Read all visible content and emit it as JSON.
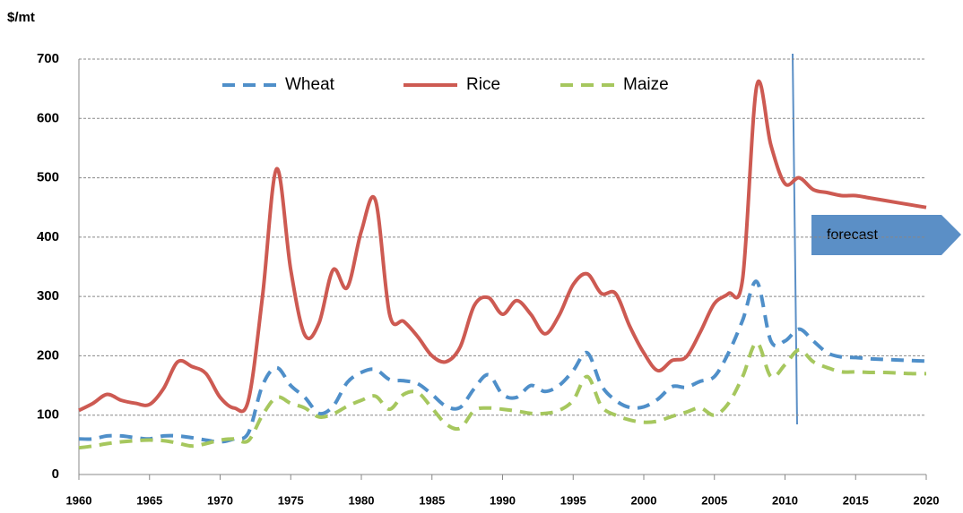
{
  "chart_data": {
    "type": "line",
    "y_label": "$/mt",
    "annotation": "forecast",
    "x": [
      1960,
      1961,
      1962,
      1963,
      1964,
      1965,
      1966,
      1967,
      1968,
      1969,
      1970,
      1971,
      1972,
      1973,
      1974,
      1975,
      1976,
      1977,
      1978,
      1979,
      1980,
      1981,
      1982,
      1983,
      1984,
      1985,
      1986,
      1987,
      1988,
      1989,
      1990,
      1991,
      1992,
      1993,
      1994,
      1995,
      1996,
      1997,
      1998,
      1999,
      2000,
      2001,
      2002,
      2003,
      2004,
      2005,
      2006,
      2007,
      2008,
      2009,
      2010,
      2011,
      2012,
      2013,
      2014,
      2015,
      2016,
      2017,
      2018,
      2019,
      2020
    ],
    "series": [
      {
        "name": "Wheat",
        "color": "#4f8fc9",
        "dash": true,
        "values": [
          60,
          60,
          65,
          65,
          62,
          60,
          65,
          65,
          62,
          58,
          55,
          60,
          70,
          150,
          180,
          150,
          130,
          103,
          115,
          155,
          172,
          177,
          160,
          158,
          153,
          135,
          115,
          113,
          145,
          168,
          135,
          130,
          150,
          140,
          150,
          175,
          205,
          150,
          125,
          113,
          114,
          127,
          148,
          147,
          157,
          165,
          205,
          260,
          325,
          225,
          225,
          245,
          225,
          205,
          198,
          197,
          195,
          194,
          193,
          192,
          191
        ]
      },
      {
        "name": "Rice",
        "color": "#cd5a52",
        "dash": false,
        "values": [
          108,
          120,
          135,
          125,
          120,
          118,
          145,
          190,
          182,
          170,
          130,
          112,
          125,
          300,
          515,
          345,
          235,
          255,
          345,
          315,
          410,
          462,
          270,
          258,
          232,
          200,
          190,
          215,
          285,
          298,
          270,
          293,
          270,
          237,
          268,
          320,
          338,
          305,
          305,
          250,
          205,
          175,
          192,
          198,
          240,
          288,
          305,
          330,
          655,
          555,
          490,
          500,
          480,
          475,
          470,
          470,
          466,
          462,
          458,
          454,
          450
        ]
      },
      {
        "name": "Maize",
        "color": "#a6c75e",
        "dash": true,
        "values": [
          45,
          48,
          52,
          55,
          57,
          58,
          57,
          53,
          48,
          52,
          58,
          60,
          57,
          100,
          130,
          120,
          112,
          97,
          102,
          115,
          125,
          132,
          110,
          135,
          138,
          112,
          85,
          78,
          108,
          112,
          110,
          107,
          103,
          103,
          108,
          125,
          165,
          115,
          100,
          92,
          88,
          90,
          98,
          105,
          112,
          100,
          120,
          165,
          222,
          165,
          185,
          210,
          190,
          180,
          173,
          173,
          172,
          172,
          171,
          170,
          170
        ]
      }
    ],
    "xlim": [
      1960,
      2020
    ],
    "xticks": [
      1960,
      1965,
      1970,
      1975,
      1980,
      1985,
      1990,
      1995,
      2000,
      2005,
      2010,
      2015,
      2020
    ],
    "ylim": [
      0,
      700
    ],
    "yticks": [
      0,
      100,
      200,
      300,
      400,
      500,
      600,
      700
    ],
    "grid": true,
    "legend": "top"
  }
}
